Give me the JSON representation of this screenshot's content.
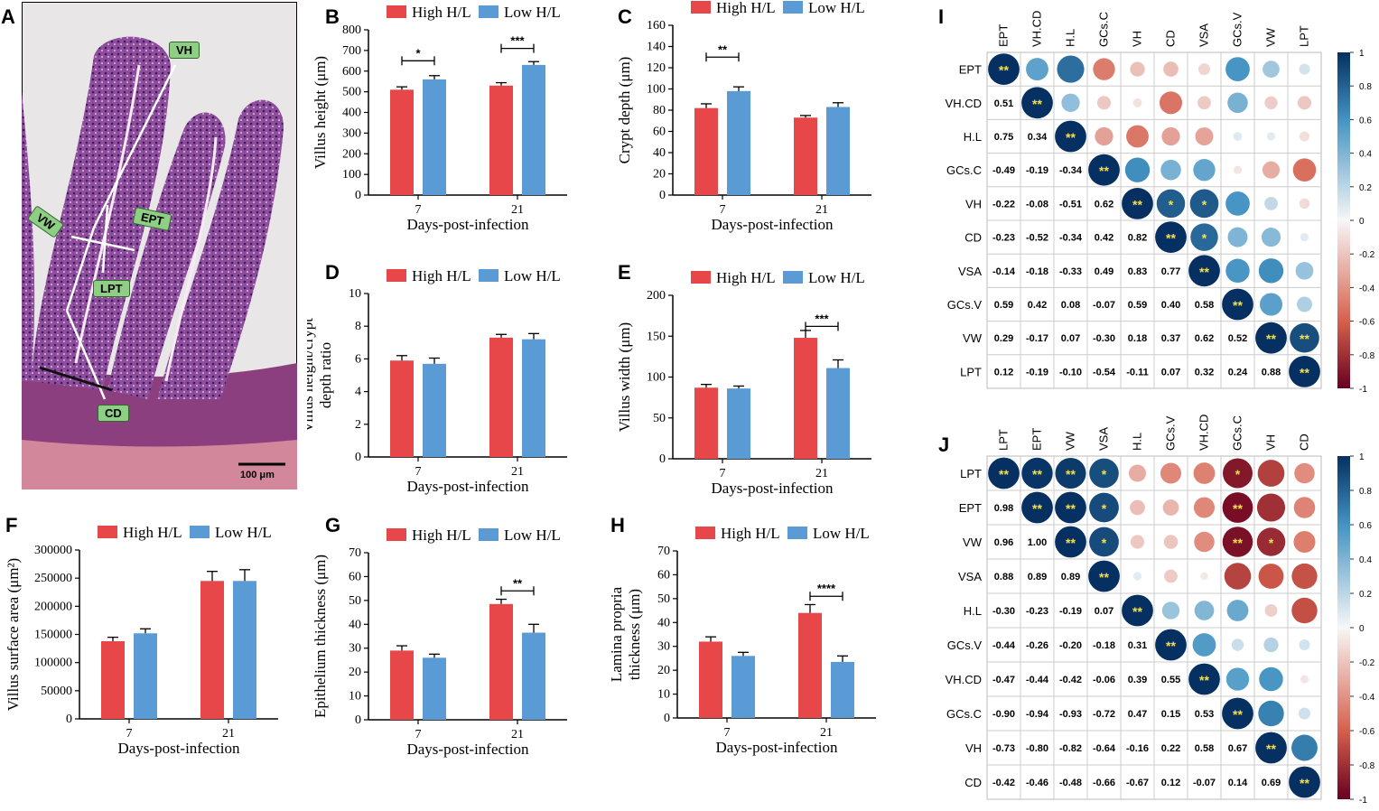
{
  "colors": {
    "high": "#e8474a",
    "low": "#5b9bd5"
  },
  "legend": {
    "high": "High H/L",
    "low": "Low H/L"
  },
  "panel_a": {
    "label": "A",
    "scale_bar": "100 μm",
    "tags": {
      "vh": "VH",
      "ept": "EPT",
      "vw": "VW",
      "lpt": "LPT",
      "cd": "CD"
    }
  },
  "chart_data": [
    {
      "id": "B",
      "type": "bar",
      "categories": [
        "7",
        "21"
      ],
      "xlabel": "Days-post-infection",
      "ylabel": "Villus height (μm)",
      "ylim": [
        0,
        800
      ],
      "yticks": [
        "0",
        "100",
        "200",
        "300",
        "400",
        "500",
        "600",
        "700",
        "800"
      ],
      "series": [
        {
          "name": "High H/L",
          "values": [
            510,
            530
          ],
          "err": [
            14,
            14
          ]
        },
        {
          "name": "Low H/L",
          "values": [
            560,
            630
          ],
          "err": [
            18,
            16
          ]
        }
      ],
      "sig": [
        {
          "group": 0,
          "text": "*",
          "level": 650
        },
        {
          "group": 1,
          "text": "***",
          "level": 710
        }
      ]
    },
    {
      "id": "C",
      "type": "bar",
      "categories": [
        "7",
        "21"
      ],
      "xlabel": "Days-post-infection",
      "ylabel": "Crypt depth (μm)",
      "ylim": [
        0,
        160
      ],
      "yticks": [
        "0",
        "20",
        "40",
        "60",
        "80",
        "100",
        "120",
        "140",
        "160"
      ],
      "series": [
        {
          "name": "High H/L",
          "values": [
            82,
            73
          ],
          "err": [
            4,
            2
          ]
        },
        {
          "name": "Low H/L",
          "values": [
            98,
            83
          ],
          "err": [
            4,
            4
          ]
        }
      ],
      "sig": [
        {
          "group": 0,
          "text": "**",
          "level": 130
        }
      ]
    },
    {
      "id": "D",
      "type": "bar",
      "categories": [
        "7",
        "21"
      ],
      "xlabel": "Days-post-infection",
      "ylabel": "Villus height/crypt depth ratio",
      "ylim": [
        0,
        10
      ],
      "yticks": [
        "0",
        "2",
        "4",
        "6",
        "8",
        "10"
      ],
      "series": [
        {
          "name": "High H/L",
          "values": [
            5.9,
            7.3
          ],
          "err": [
            0.3,
            0.2
          ]
        },
        {
          "name": "Low H/L",
          "values": [
            5.7,
            7.2
          ],
          "err": [
            0.35,
            0.35
          ]
        }
      ],
      "sig": []
    },
    {
      "id": "E",
      "type": "bar",
      "categories": [
        "7",
        "21"
      ],
      "xlabel": "Days-post-infection",
      "ylabel": "Villus width (μm)",
      "ylim": [
        0,
        200
      ],
      "yticks": [
        "0",
        "50",
        "100",
        "150",
        "200"
      ],
      "series": [
        {
          "name": "High H/L",
          "values": [
            87,
            148
          ],
          "err": [
            4,
            9
          ]
        },
        {
          "name": "Low H/L",
          "values": [
            86,
            111
          ],
          "err": [
            3,
            10
          ]
        }
      ],
      "sig": [
        {
          "group": 1,
          "text": "***",
          "level": 162
        }
      ]
    },
    {
      "id": "F",
      "type": "bar",
      "categories": [
        "7",
        "21"
      ],
      "xlabel": "Days-post-infection",
      "ylabel": "Villus surface area (μm²)",
      "ylim": [
        0,
        300000
      ],
      "yticks": [
        "0",
        "50000",
        "100000",
        "150000",
        "200000",
        "250000",
        "300000"
      ],
      "series": [
        {
          "name": "High H/L",
          "values": [
            138000,
            245000
          ],
          "err": [
            7000,
            17000
          ]
        },
        {
          "name": "Low H/L",
          "values": [
            152000,
            245000
          ],
          "err": [
            8000,
            20000
          ]
        }
      ],
      "sig": []
    },
    {
      "id": "G",
      "type": "bar",
      "categories": [
        "7",
        "21"
      ],
      "xlabel": "Days-post-infection",
      "ylabel": "Epithelium thickness (μm)",
      "ylim": [
        0,
        70
      ],
      "yticks": [
        "0",
        "10",
        "20",
        "30",
        "40",
        "50",
        "60",
        "70"
      ],
      "series": [
        {
          "name": "High H/L",
          "values": [
            29,
            48.5
          ],
          "err": [
            2,
            2
          ]
        },
        {
          "name": "Low H/L",
          "values": [
            26,
            36.5
          ],
          "err": [
            1.5,
            3.5
          ]
        }
      ],
      "sig": [
        {
          "group": 1,
          "text": "**",
          "level": 54
        }
      ]
    },
    {
      "id": "H",
      "type": "bar",
      "categories": [
        "7",
        "21"
      ],
      "xlabel": "Days-post-infection",
      "ylabel": "Lamina propria thickness (μm)",
      "ylim": [
        0,
        70
      ],
      "yticks": [
        "0",
        "10",
        "20",
        "30",
        "40",
        "50",
        "60",
        "70"
      ],
      "series": [
        {
          "name": "High H/L",
          "values": [
            32,
            44
          ],
          "err": [
            2,
            3.5
          ]
        },
        {
          "name": "Low H/L",
          "values": [
            26,
            23.5
          ],
          "err": [
            1.5,
            2.5
          ]
        }
      ],
      "sig": [
        {
          "group": 1,
          "text": "****",
          "level": 51
        }
      ]
    },
    {
      "id": "I",
      "type": "heatmap",
      "labels": [
        "EPT",
        "VH.CD",
        "H.L",
        "GCs.C",
        "VH",
        "CD",
        "VSA",
        "GCs.V",
        "VW",
        "LPT"
      ],
      "lower": [
        [
          0.51
        ],
        [
          0.75,
          0.34
        ],
        [
          -0.49,
          -0.19,
          -0.34
        ],
        [
          -0.22,
          -0.08,
          -0.51,
          0.62
        ],
        [
          -0.23,
          -0.52,
          -0.34,
          0.42,
          0.82
        ],
        [
          -0.14,
          -0.18,
          -0.33,
          0.49,
          0.83,
          0.77
        ],
        [
          0.59,
          0.42,
          0.08,
          -0.07,
          0.59,
          0.4,
          0.58
        ],
        [
          0.29,
          -0.17,
          0.07,
          -0.3,
          0.18,
          0.37,
          0.62,
          0.52
        ],
        [
          0.12,
          -0.19,
          -0.1,
          -0.54,
          -0.11,
          0.07,
          0.32,
          0.24,
          0.88
        ]
      ],
      "upper_stars": {
        "4-5": "*",
        "4-6": "*",
        "5-6": "*",
        "8-9": "**"
      },
      "colorbar_ticks": [
        "1",
        "0.8",
        "0.6",
        "0.4",
        "0.2",
        "0",
        "-0.2",
        "-0.4",
        "-0.6",
        "-0.8",
        "-1"
      ]
    },
    {
      "id": "J",
      "type": "heatmap",
      "labels": [
        "LPT",
        "EPT",
        "VW",
        "VSA",
        "H.L",
        "GCs.V",
        "VH.CD",
        "GCs.C",
        "VH",
        "CD"
      ],
      "lower": [
        [
          0.98
        ],
        [
          0.96,
          1.0
        ],
        [
          0.88,
          0.89,
          0.89
        ],
        [
          -0.3,
          -0.23,
          -0.19,
          0.07
        ],
        [
          -0.44,
          -0.26,
          -0.2,
          -0.18,
          0.31
        ],
        [
          -0.47,
          -0.44,
          -0.42,
          -0.06,
          0.39,
          0.55
        ],
        [
          -0.9,
          -0.94,
          -0.93,
          -0.72,
          0.47,
          0.15,
          0.53
        ],
        [
          -0.73,
          -0.8,
          -0.82,
          -0.64,
          -0.16,
          0.22,
          0.58,
          0.67
        ],
        [
          -0.42,
          -0.46,
          -0.48,
          -0.66,
          -0.67,
          0.12,
          -0.07,
          0.14,
          0.69
        ]
      ],
      "upper_stars": {
        "0-1": "**",
        "0-2": "**",
        "0-3": "*",
        "0-7": "*",
        "1-2": "**",
        "1-3": "*",
        "1-7": "**",
        "2-3": "*",
        "2-7": "**",
        "2-8": "*"
      },
      "colorbar_ticks": [
        "1",
        "0.8",
        "0.6",
        "0.4",
        "0.2",
        "0",
        "-0.2",
        "-0.4",
        "-0.6",
        "-0.8",
        "-1"
      ]
    }
  ]
}
